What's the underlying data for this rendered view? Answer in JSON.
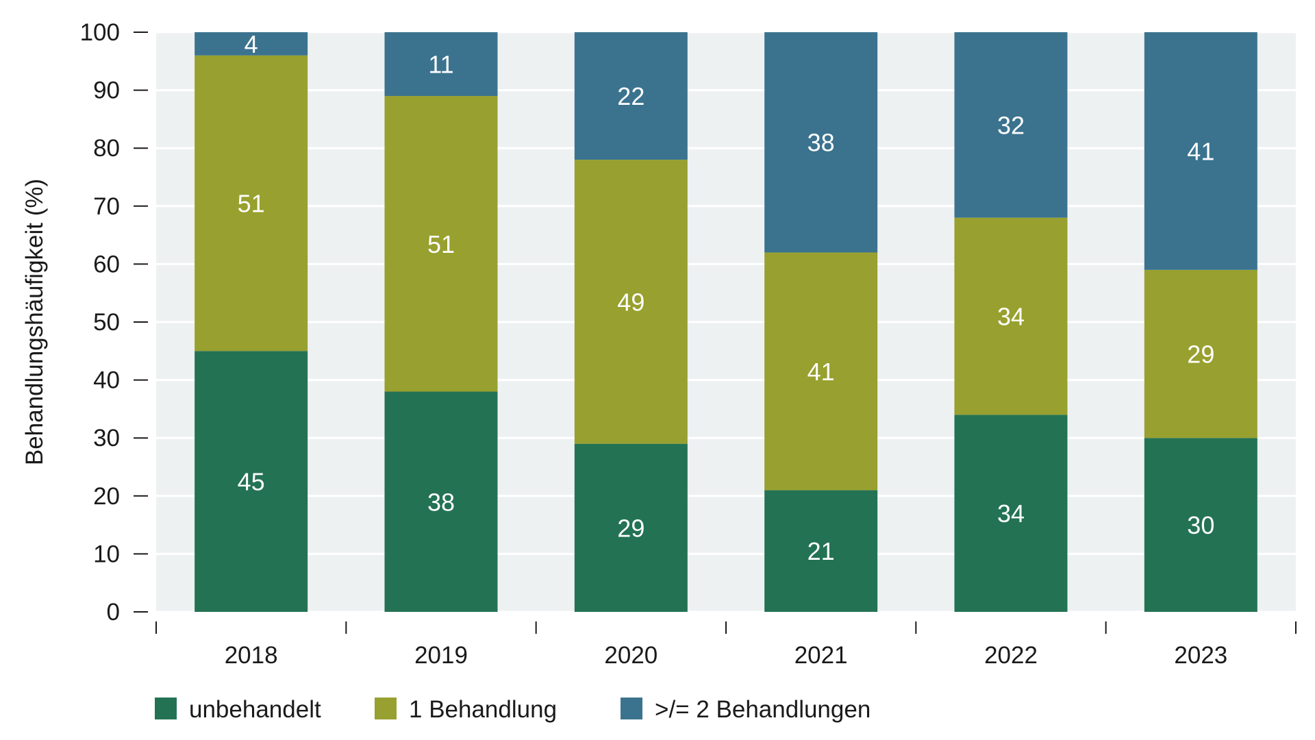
{
  "chart_data": {
    "type": "bar",
    "stacked": true,
    "categories": [
      "2018",
      "2019",
      "2020",
      "2021",
      "2022",
      "2023"
    ],
    "series": [
      {
        "name": "unbehandelt",
        "values": [
          45,
          38,
          29,
          21,
          34,
          30
        ],
        "color": "#237254"
      },
      {
        "name": "1 Behandlung",
        "values": [
          51,
          51,
          49,
          41,
          34,
          29
        ],
        "color": "#98a02f"
      },
      {
        "name": ">/= 2 Behandlungen",
        "values": [
          4,
          11,
          22,
          38,
          32,
          41
        ],
        "color": "#3b738f"
      }
    ],
    "ylabel": "Behandlungshäufigkeit (%)",
    "ylim": [
      0,
      100
    ],
    "yticks": [
      0,
      10,
      20,
      30,
      40,
      50,
      60,
      70,
      80,
      90,
      100
    ],
    "grid": true,
    "legend_position": "bottom",
    "plot_background": "#eef1f2",
    "gridline_color": "#ffffff",
    "value_label_color": "#ffffff"
  }
}
